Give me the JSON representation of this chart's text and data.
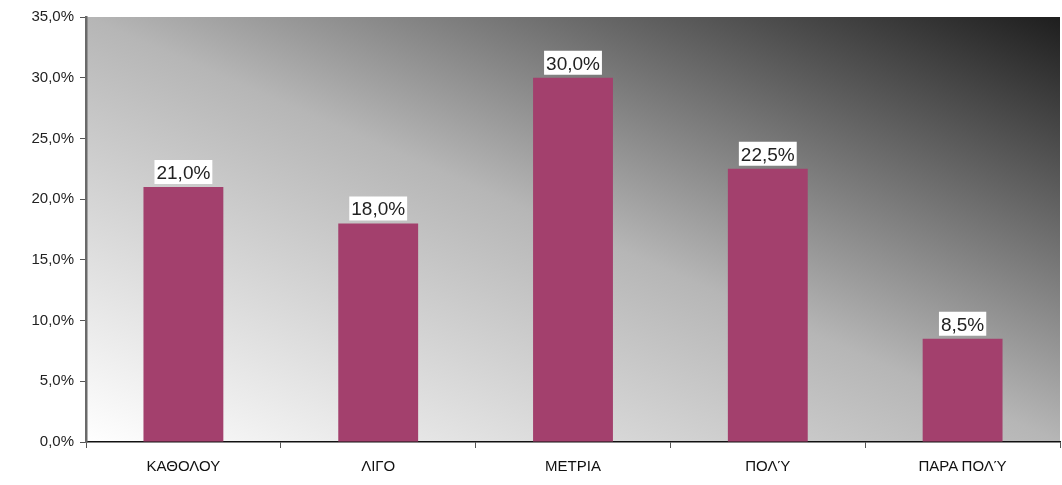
{
  "chart_data": {
    "type": "bar",
    "categories": [
      "ΚΑΘΟΛΟΥ",
      "ΛΙΓΟ",
      "ΜΕΤΡΙΑ",
      "ΠΟΛΎ",
      "ΠΑΡΑ ΠΟΛΎ"
    ],
    "values": [
      21.0,
      18.0,
      30.0,
      22.5,
      8.5
    ],
    "value_labels": [
      "21,0%",
      "18,0%",
      "30,0%",
      "22,5%",
      "8,5%"
    ],
    "color": "#a3406d",
    "ylim": [
      0,
      35
    ],
    "yticks": [
      {
        "value": 0,
        "label": "0,0%"
      },
      {
        "value": 5,
        "label": "5,0%"
      },
      {
        "value": 10,
        "label": "10,0%"
      },
      {
        "value": 15,
        "label": "15,0%"
      },
      {
        "value": 20,
        "label": "20,0%"
      },
      {
        "value": 25,
        "label": "25,0%"
      },
      {
        "value": 30,
        "label": "30,0%"
      },
      {
        "value": 35,
        "label": "35,0%"
      }
    ]
  }
}
